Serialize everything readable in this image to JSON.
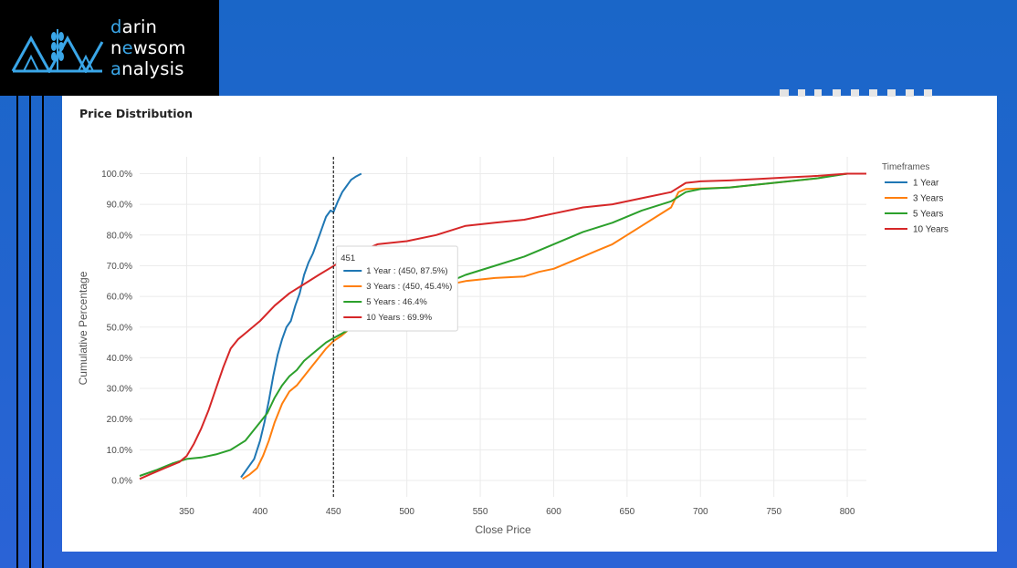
{
  "logo": {
    "icon": "wheat-mountains-logo",
    "line1_accent": "d",
    "line1_rest": "arin",
    "line2_start": "n",
    "line2_accent": "e",
    "line2_end": "wsom",
    "line3_accent": "a",
    "line3_rest": "nalysis"
  },
  "colors": {
    "background": "#1f66cc",
    "logo_accent": "#3aa6e8",
    "series": [
      "#1f77b4",
      "#ff7f0e",
      "#2ca02c",
      "#d62728"
    ]
  },
  "chart_data": {
    "type": "line",
    "title": "Price Distribution",
    "xlabel": "Close Price",
    "ylabel": "Cumulative Percentage",
    "xlim": [
      318,
      813
    ],
    "ylim": [
      -3,
      103
    ],
    "x_ticks": [
      350,
      400,
      450,
      500,
      550,
      600,
      650,
      700,
      750,
      800
    ],
    "y_ticks": [
      0,
      10,
      20,
      30,
      40,
      50,
      60,
      70,
      80,
      90,
      100
    ],
    "y_tick_labels": [
      "0.0%",
      "10.0%",
      "20.0%",
      "30.0%",
      "40.0%",
      "50.0%",
      "60.0%",
      "70.0%",
      "80.0%",
      "90.0%",
      "100.0%"
    ],
    "grid": true,
    "legend_title": "Timeframes",
    "legend_position": "right",
    "series": [
      {
        "name": "1 Year",
        "color": "#1f77b4",
        "x": [
          387,
          390,
          393,
          396,
          400,
          403,
          406,
          409,
          412,
          415,
          418,
          421,
          424,
          427,
          430,
          433,
          436,
          439,
          442,
          445,
          448,
          450,
          453,
          456,
          459,
          462,
          465,
          469
        ],
        "y": [
          1,
          3,
          5,
          7,
          13,
          19,
          26,
          34,
          41,
          46,
          50,
          52,
          57,
          61,
          67,
          71,
          74,
          78,
          82,
          86,
          88,
          87.5,
          91,
          94,
          96,
          98,
          99,
          100
        ]
      },
      {
        "name": "3 Years",
        "color": "#ff7f0e",
        "x": [
          388,
          393,
          398,
          402,
          406,
          410,
          415,
          420,
          425,
          430,
          435,
          440,
          445,
          450,
          455,
          460,
          470,
          480,
          490,
          500,
          510,
          520,
          540,
          560,
          580,
          590,
          600,
          610,
          620,
          630,
          640,
          650,
          660,
          670,
          680,
          685,
          690,
          700,
          720,
          740,
          760,
          780,
          790,
          800,
          813
        ],
        "y": [
          0.5,
          2,
          4,
          8,
          13,
          19,
          25,
          29,
          31,
          34,
          37,
          40,
          43,
          45.4,
          47,
          49,
          51,
          53,
          56,
          58,
          61,
          63,
          65,
          66,
          66.5,
          68,
          69,
          71,
          73,
          75,
          77,
          80,
          83,
          86,
          89,
          94,
          95,
          95.2,
          95.5,
          96.5,
          97.5,
          98.5,
          99.5,
          100,
          100
        ]
      },
      {
        "name": "5 Years",
        "color": "#2ca02c",
        "x": [
          318,
          330,
          340,
          350,
          360,
          370,
          380,
          390,
          395,
          400,
          405,
          410,
          415,
          420,
          425,
          430,
          435,
          440,
          445,
          450,
          460,
          470,
          480,
          490,
          500,
          520,
          540,
          560,
          580,
          600,
          620,
          640,
          660,
          680,
          690,
          700,
          720,
          740,
          760,
          780,
          800,
          813
        ],
        "y": [
          1.5,
          3.5,
          5.5,
          7,
          7.5,
          8.5,
          10,
          13,
          16,
          19,
          22,
          27,
          31,
          34,
          36,
          39,
          41,
          43,
          45,
          46.4,
          49,
          52,
          55,
          58,
          60,
          63,
          67,
          70,
          73,
          77,
          81,
          84,
          88,
          91,
          94,
          95,
          95.5,
          96.5,
          97.5,
          98.5,
          100,
          100
        ]
      },
      {
        "name": "10 Years",
        "color": "#d62728",
        "x": [
          318,
          325,
          335,
          345,
          350,
          355,
          360,
          365,
          370,
          375,
          380,
          385,
          390,
          400,
          410,
          420,
          430,
          440,
          450,
          460,
          480,
          500,
          520,
          540,
          560,
          580,
          600,
          620,
          640,
          660,
          680,
          690,
          700,
          720,
          740,
          760,
          780,
          800,
          813
        ],
        "y": [
          0.5,
          2,
          4,
          6,
          8,
          12,
          17,
          23,
          30,
          37,
          43,
          46,
          48,
          52,
          57,
          61,
          64,
          67,
          69.9,
          73,
          77,
          78,
          80,
          83,
          84,
          85,
          87,
          89,
          90,
          92,
          94,
          97,
          97.5,
          97.8,
          98.3,
          98.8,
          99.3,
          100,
          100
        ]
      }
    ],
    "hover": {
      "x": 450,
      "header": "451",
      "lines": [
        "1 Year : (450, 87.5%)",
        "3 Years : (450, 45.4%)",
        "5 Years : 46.4%",
        "10 Years : 69.9%"
      ]
    }
  }
}
